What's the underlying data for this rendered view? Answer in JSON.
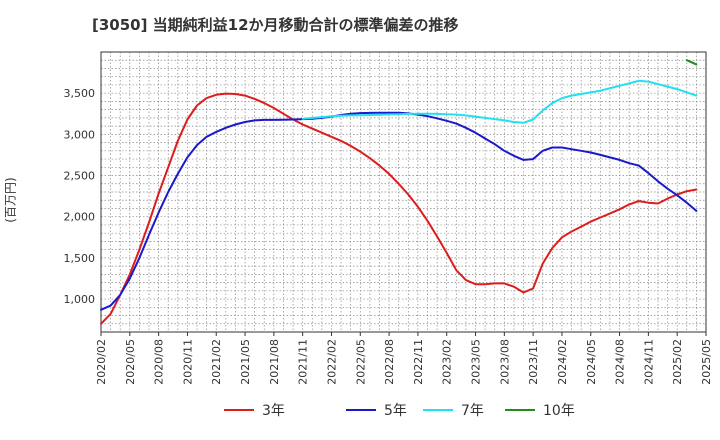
{
  "chart_data": {
    "type": "line",
    "title": "[3050]  当期純利益12か月移動合計の標準偏差の推移",
    "ylabel": "(百万円)",
    "xlabel": "",
    "ylim": [
      600,
      4000
    ],
    "xlim": [
      "2020-02",
      "2025-05"
    ],
    "grid": true,
    "legend_position": "bottom",
    "y_ticks": [
      1000,
      1500,
      2000,
      2500,
      3000,
      3500
    ],
    "y_tick_labels": [
      "1,000",
      "1,500",
      "2,000",
      "2,500",
      "3,000",
      "3,500"
    ],
    "x_tick_labels": [
      "2020/02",
      "2020/05",
      "2020/08",
      "2020/11",
      "2021/02",
      "2021/05",
      "2021/08",
      "2021/11",
      "2022/02",
      "2022/05",
      "2022/08",
      "2022/11",
      "2023/02",
      "2023/05",
      "2023/08",
      "2023/11",
      "2024/02",
      "2024/05",
      "2024/08",
      "2024/11",
      "2025/02",
      "2025/05"
    ],
    "series": [
      {
        "name": "3年",
        "color": "#dd1c1c",
        "start": "2020-02",
        "values": [
          700,
          820,
          1050,
          1300,
          1600,
          1930,
          2280,
          2600,
          2920,
          3180,
          3350,
          3440,
          3480,
          3495,
          3490,
          3470,
          3430,
          3380,
          3320,
          3250,
          3180,
          3120,
          3070,
          3020,
          2970,
          2920,
          2860,
          2790,
          2710,
          2620,
          2520,
          2400,
          2270,
          2120,
          1950,
          1760,
          1560,
          1350,
          1230,
          1180,
          1180,
          1190,
          1190,
          1150,
          1080,
          1130,
          1430,
          1620,
          1750,
          1820,
          1880,
          1940,
          1990,
          2040,
          2090,
          2150,
          2190,
          2170,
          2160,
          2220,
          2270,
          2310,
          2330
        ]
      },
      {
        "name": "5年",
        "color": "#1a1acc",
        "start": "2020-02",
        "values": [
          870,
          920,
          1050,
          1250,
          1500,
          1780,
          2050,
          2300,
          2520,
          2720,
          2870,
          2970,
          3030,
          3080,
          3120,
          3150,
          3170,
          3175,
          3175,
          3178,
          3180,
          3185,
          3190,
          3200,
          3215,
          3235,
          3250,
          3258,
          3260,
          3262,
          3263,
          3262,
          3255,
          3240,
          3220,
          3195,
          3165,
          3130,
          3080,
          3020,
          2950,
          2880,
          2800,
          2740,
          2690,
          2700,
          2800,
          2840,
          2840,
          2820,
          2800,
          2780,
          2750,
          2720,
          2690,
          2650,
          2620,
          2530,
          2430,
          2340,
          2260,
          2170,
          2070
        ]
      },
      {
        "name": "7年",
        "color": "#22e0f0",
        "start": "2020-02",
        "values": [
          null,
          null,
          null,
          null,
          null,
          null,
          null,
          null,
          null,
          null,
          null,
          null,
          null,
          null,
          null,
          null,
          null,
          null,
          null,
          null,
          null,
          3190,
          3200,
          3210,
          3220,
          3225,
          3230,
          3232,
          3235,
          3238,
          3242,
          3245,
          3248,
          3250,
          3250,
          3248,
          3245,
          3240,
          3230,
          3215,
          3200,
          3185,
          3170,
          3150,
          3140,
          3180,
          3290,
          3380,
          3440,
          3470,
          3490,
          3510,
          3530,
          3560,
          3590,
          3620,
          3650,
          3640,
          3610,
          3580,
          3550,
          3510,
          3470
        ]
      },
      {
        "name": "10年",
        "color": "#228b22",
        "start": "2020-02",
        "values": [
          null,
          null,
          null,
          null,
          null,
          null,
          null,
          null,
          null,
          null,
          null,
          null,
          null,
          null,
          null,
          null,
          null,
          null,
          null,
          null,
          null,
          null,
          null,
          null,
          null,
          null,
          null,
          null,
          null,
          null,
          null,
          null,
          null,
          null,
          null,
          null,
          null,
          null,
          null,
          null,
          null,
          null,
          null,
          null,
          null,
          null,
          null,
          null,
          null,
          null,
          null,
          null,
          null,
          null,
          null,
          null,
          null,
          null,
          null,
          null,
          null,
          3900,
          3850
        ]
      }
    ]
  }
}
